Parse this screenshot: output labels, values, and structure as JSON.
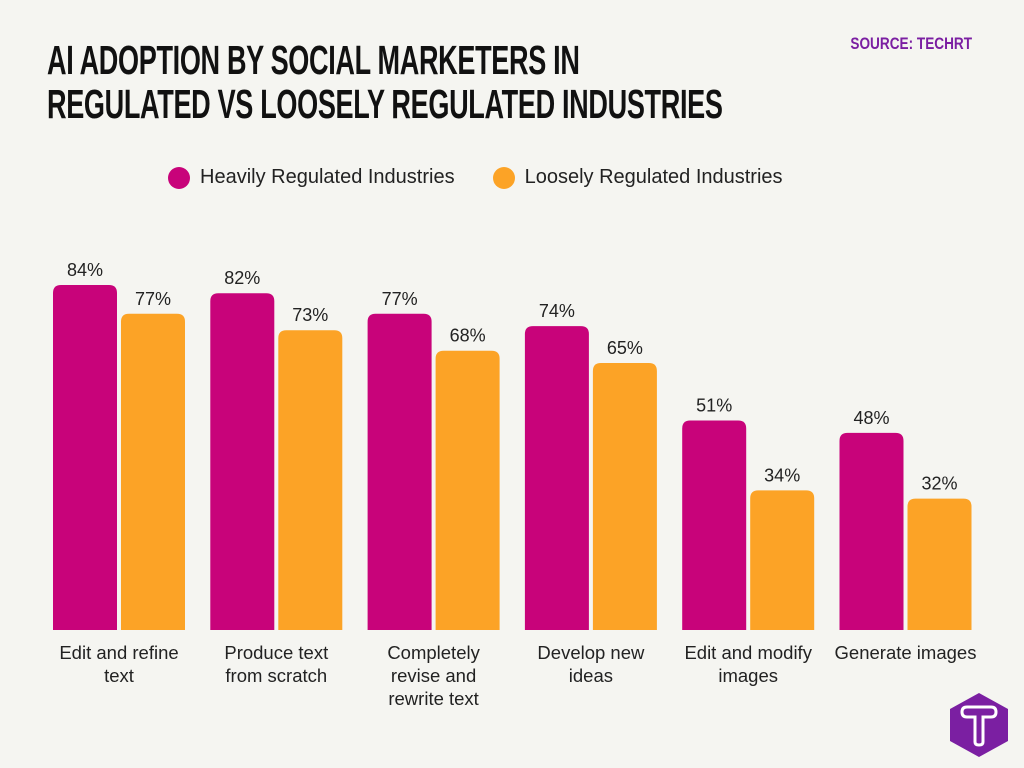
{
  "header": {
    "title_line1": "AI ADOPTION BY SOCIAL MARKETERS IN",
    "title_line2": "REGULATED VS LOOSELY REGULATED INDUSTRIES",
    "source": "SOURCE: TECHRT"
  },
  "logo": {
    "text": "T",
    "color": "#7b1fa2"
  },
  "chart_data": {
    "type": "bar",
    "title": "AI ADOPTION BY SOCIAL MARKETERS IN REGULATED VS LOOSELY REGULATED INDUSTRIES",
    "categories": [
      [
        "Edit and refine",
        "text"
      ],
      [
        "Produce text",
        "from scratch"
      ],
      [
        "Completely",
        "revise and",
        "rewrite text"
      ],
      [
        "Develop new",
        "ideas"
      ],
      [
        "Edit and modify",
        "images"
      ],
      [
        "Generate images"
      ]
    ],
    "series": [
      {
        "name": "Heavily Regulated Industries",
        "color": "#c8037a",
        "values": [
          84,
          82,
          77,
          74,
          51,
          48
        ]
      },
      {
        "name": "Loosely Regulated Industries",
        "color": "#fca326",
        "values": [
          77,
          73,
          68,
          65,
          34,
          32
        ]
      }
    ],
    "value_suffix": "%",
    "ylim": [
      0,
      100
    ],
    "grid": false,
    "legend_position": "top"
  }
}
